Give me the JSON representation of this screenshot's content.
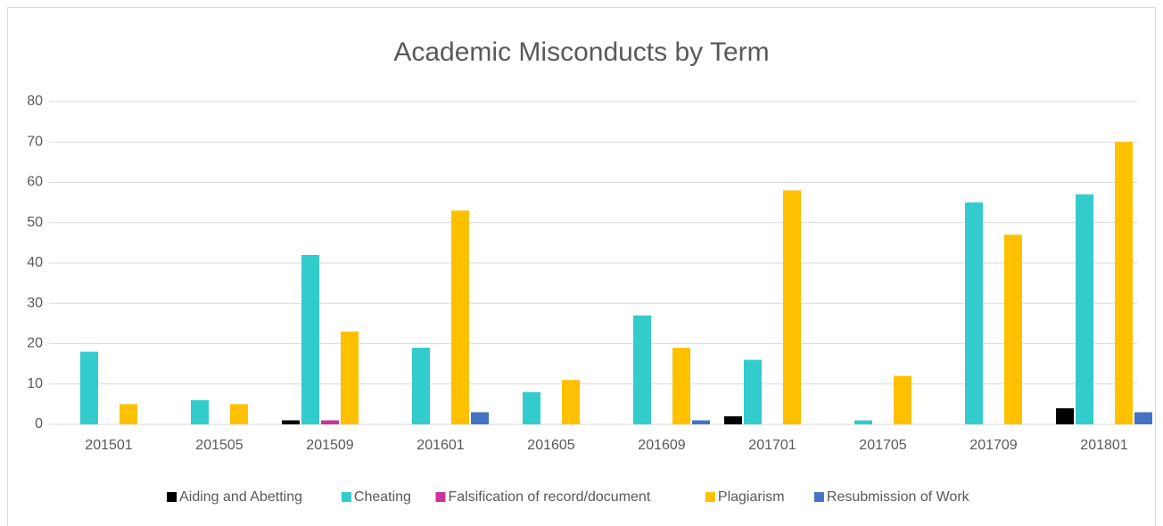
{
  "chart_data": {
    "type": "bar",
    "title": "Academic Misconducts by Term",
    "categories": [
      "201501",
      "201505",
      "201509",
      "201601",
      "201605",
      "201609",
      "201701",
      "201705",
      "201709",
      "201801"
    ],
    "series": [
      {
        "name": "Aiding and Abetting",
        "color": "#000000",
        "values": [
          0,
          0,
          1,
          0,
          0,
          0,
          2,
          0,
          0,
          4
        ]
      },
      {
        "name": "Cheating",
        "color": "#33CCCC",
        "values": [
          18,
          6,
          42,
          19,
          8,
          27,
          16,
          1,
          55,
          57
        ]
      },
      {
        "name": "Falsification of record/document",
        "color": "#CC3399",
        "values": [
          0,
          0,
          1,
          0,
          0,
          0,
          0,
          0,
          0,
          0
        ]
      },
      {
        "name": "Plagiarism",
        "color": "#FFC000",
        "values": [
          5,
          5,
          23,
          53,
          11,
          19,
          58,
          12,
          47,
          70
        ]
      },
      {
        "name": "Resubmission of Work",
        "color": "#4472C4",
        "values": [
          0,
          0,
          0,
          3,
          0,
          1,
          0,
          0,
          0,
          3
        ]
      }
    ],
    "ylim": [
      0,
      80
    ],
    "yticks": [
      0,
      10,
      20,
      30,
      40,
      50,
      60,
      70,
      80
    ],
    "grid": true,
    "legend": "bottom"
  }
}
